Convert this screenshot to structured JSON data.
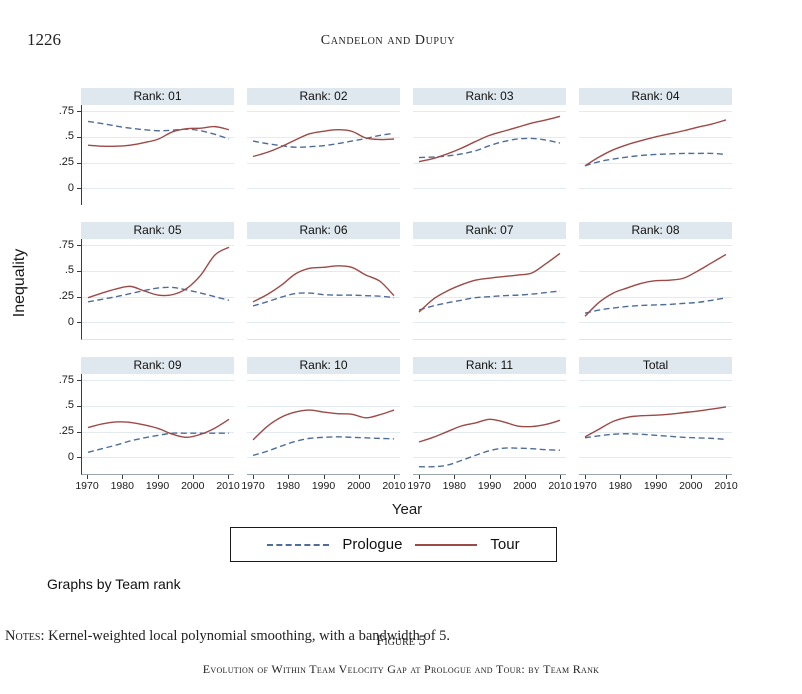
{
  "page": {
    "page_number": "1226",
    "running_head": "Candelon and Dupuy",
    "graphs_by_note": "Graphs by Team rank",
    "notes_label": "Notes",
    "notes_text": ": Kernel-weighted local polynomial smoothing, with a bandwidth of 5.",
    "figure_label": "Figure 5",
    "figure_caption": "Evolution of Within Team Velocity Gap at Prologue and Tour: by Team Rank"
  },
  "colors": {
    "prologue_line": "#4f6d99",
    "tour_line": "#9c4a47",
    "panel_header_bg": "#dfe8ee",
    "gridline": "#e3ebf0",
    "axis": "#3c3c3c"
  },
  "legend": {
    "items": [
      {
        "label": "Prologue",
        "style": "dashed"
      },
      {
        "label": "Tour",
        "style": "solid"
      }
    ]
  },
  "chart_data": {
    "type": "line",
    "layout": "small-multiples 3 rows x 4 cols",
    "xlabel": "Year",
    "ylabel": "Inequality",
    "x_ticks": [
      1970,
      1980,
      1990,
      2000,
      2010
    ],
    "x_tick_labels": [
      "1970",
      "1980",
      "1990",
      "2000",
      "2010"
    ],
    "y_ticks": [
      0,
      0.25,
      0.5,
      0.75
    ],
    "y_tick_labels": [
      "0",
      ".25",
      ".5",
      ".75"
    ],
    "xlim": [
      1968,
      2012
    ],
    "ylim": [
      -0.16,
      0.81
    ],
    "grid": true,
    "legend_position": "bottom",
    "years": [
      1970,
      1974,
      1978,
      1982,
      1986,
      1990,
      1994,
      1998,
      2002,
      2006,
      2010
    ],
    "series_names": [
      "Prologue",
      "Tour"
    ],
    "panels": [
      {
        "title": "Rank: 01",
        "prologue": [
          0.65,
          0.63,
          0.605,
          0.585,
          0.57,
          0.56,
          0.565,
          0.575,
          0.56,
          0.525,
          0.48
        ],
        "tour": [
          0.42,
          0.41,
          0.41,
          0.42,
          0.445,
          0.48,
          0.55,
          0.58,
          0.585,
          0.6,
          0.57
        ]
      },
      {
        "title": "Rank: 02",
        "prologue": [
          0.46,
          0.435,
          0.415,
          0.4,
          0.405,
          0.415,
          0.435,
          0.46,
          0.485,
          0.515,
          0.535
        ],
        "tour": [
          0.31,
          0.35,
          0.405,
          0.47,
          0.53,
          0.555,
          0.57,
          0.555,
          0.49,
          0.475,
          0.48
        ]
      },
      {
        "title": "Rank: 03",
        "prologue": [
          0.3,
          0.305,
          0.315,
          0.335,
          0.365,
          0.415,
          0.455,
          0.48,
          0.485,
          0.47,
          0.44
        ],
        "tour": [
          0.26,
          0.29,
          0.335,
          0.39,
          0.455,
          0.515,
          0.555,
          0.595,
          0.635,
          0.665,
          0.7
        ]
      },
      {
        "title": "Rank: 04",
        "prologue": [
          0.22,
          0.26,
          0.285,
          0.305,
          0.32,
          0.33,
          0.335,
          0.34,
          0.34,
          0.34,
          0.33
        ],
        "tour": [
          0.22,
          0.305,
          0.375,
          0.425,
          0.465,
          0.5,
          0.53,
          0.56,
          0.595,
          0.625,
          0.665
        ]
      },
      {
        "title": "Rank: 05",
        "prologue": [
          0.2,
          0.225,
          0.25,
          0.28,
          0.31,
          0.335,
          0.34,
          0.315,
          0.285,
          0.25,
          0.215
        ],
        "tour": [
          0.24,
          0.285,
          0.325,
          0.35,
          0.305,
          0.265,
          0.27,
          0.33,
          0.46,
          0.655,
          0.73
        ]
      },
      {
        "title": "Rank: 06",
        "prologue": [
          0.16,
          0.2,
          0.245,
          0.28,
          0.285,
          0.27,
          0.265,
          0.265,
          0.26,
          0.255,
          0.24
        ],
        "tour": [
          0.2,
          0.27,
          0.36,
          0.47,
          0.525,
          0.535,
          0.55,
          0.535,
          0.46,
          0.4,
          0.26
        ]
      },
      {
        "title": "Rank: 07",
        "prologue": [
          0.12,
          0.16,
          0.19,
          0.215,
          0.24,
          0.25,
          0.26,
          0.265,
          0.275,
          0.29,
          0.305
        ],
        "tour": [
          0.1,
          0.225,
          0.305,
          0.365,
          0.41,
          0.43,
          0.445,
          0.46,
          0.48,
          0.57,
          0.67
        ]
      },
      {
        "title": "Rank: 08",
        "prologue": [
          0.09,
          0.12,
          0.14,
          0.155,
          0.165,
          0.17,
          0.175,
          0.185,
          0.195,
          0.215,
          0.24
        ],
        "tour": [
          0.06,
          0.195,
          0.285,
          0.335,
          0.38,
          0.405,
          0.41,
          0.43,
          0.5,
          0.58,
          0.66
        ]
      },
      {
        "title": "Rank: 09",
        "prologue": [
          0.05,
          0.085,
          0.12,
          0.16,
          0.19,
          0.215,
          0.235,
          0.235,
          0.235,
          0.235,
          0.235
        ],
        "tour": [
          0.29,
          0.325,
          0.345,
          0.34,
          0.315,
          0.28,
          0.225,
          0.195,
          0.225,
          0.285,
          0.37
        ]
      },
      {
        "title": "Rank: 10",
        "prologue": [
          0.02,
          0.06,
          0.11,
          0.155,
          0.185,
          0.195,
          0.2,
          0.195,
          0.19,
          0.185,
          0.18
        ],
        "tour": [
          0.17,
          0.3,
          0.39,
          0.44,
          0.46,
          0.44,
          0.425,
          0.42,
          0.385,
          0.415,
          0.46
        ]
      },
      {
        "title": "Rank: 11",
        "prologue": [
          -0.09,
          -0.09,
          -0.075,
          -0.03,
          0.02,
          0.065,
          0.09,
          0.09,
          0.085,
          0.075,
          0.07
        ],
        "tour": [
          0.15,
          0.195,
          0.25,
          0.305,
          0.335,
          0.37,
          0.345,
          0.305,
          0.3,
          0.32,
          0.36
        ]
      },
      {
        "title": "Total",
        "prologue": [
          0.19,
          0.21,
          0.225,
          0.23,
          0.225,
          0.215,
          0.205,
          0.195,
          0.19,
          0.185,
          0.175
        ],
        "tour": [
          0.2,
          0.275,
          0.35,
          0.39,
          0.405,
          0.41,
          0.42,
          0.435,
          0.45,
          0.47,
          0.49
        ]
      }
    ]
  }
}
